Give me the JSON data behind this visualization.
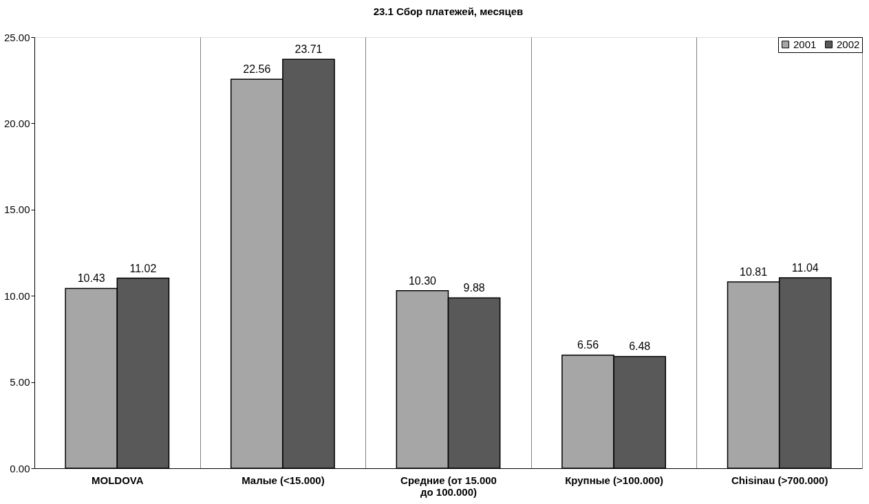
{
  "chart_data": {
    "type": "bar",
    "title": "23.1 Сбор платежей, месяцев",
    "categories": [
      "MOLDOVA",
      "Малые (<15.000)",
      "Средние (от 15.000\nдо 100.000)",
      "Крупные (>100.000)",
      "Chisinau (>700.000)"
    ],
    "series": [
      {
        "name": "2001",
        "color": "#a6a6a6",
        "values": [
          10.43,
          22.56,
          10.3,
          6.56,
          10.81
        ],
        "value_labels": [
          "10.43",
          "22.56",
          "10.30",
          "6.56",
          "10.81"
        ]
      },
      {
        "name": "2002",
        "color": "#595959",
        "values": [
          11.02,
          23.71,
          9.88,
          6.48,
          11.04
        ],
        "value_labels": [
          "11.02",
          "23.71",
          "9.88",
          "6.48",
          "11.04"
        ]
      }
    ],
    "ylim": [
      0,
      25
    ],
    "yticks": [
      {
        "value": 0,
        "label": "0.00"
      },
      {
        "value": 5,
        "label": "5.00"
      },
      {
        "value": 10,
        "label": "10.00"
      },
      {
        "value": 15,
        "label": "15.00"
      },
      {
        "value": 20,
        "label": "20.00"
      },
      {
        "value": 25,
        "label": "25.00"
      }
    ],
    "grid": "x",
    "legend": "top right"
  }
}
